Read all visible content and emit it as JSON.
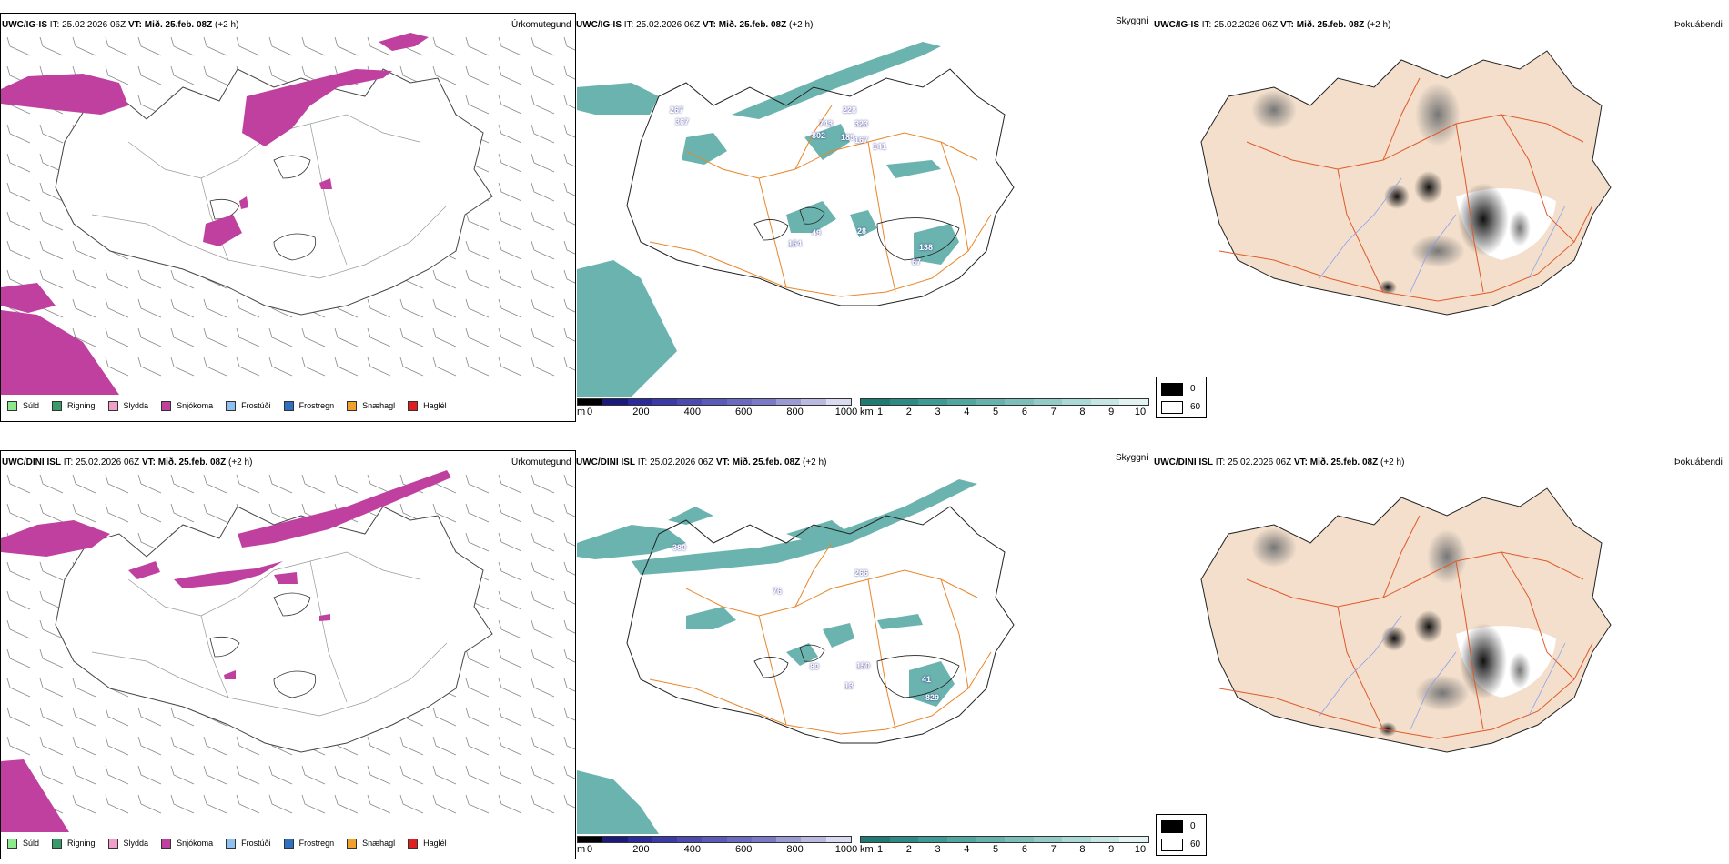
{
  "rows": [
    {
      "model": "UWC/IG-IS",
      "it": "IT: 25.02.2026 06Z",
      "vt_label": "VT:",
      "vt": "Mið. 25.feb. 08Z",
      "lead": "(+2 h)",
      "snow_labels": [
        "267",
        "367",
        "743",
        "228",
        "323",
        "802",
        "189",
        "167",
        "141",
        "28",
        "154",
        "49",
        "138",
        "67"
      ]
    },
    {
      "model": "UWC/DINI ISL",
      "it": "IT: 25.02.2026 06Z",
      "vt_label": "VT:",
      "vt": "Mið. 25.feb. 08Z",
      "lead": "(+2 h)",
      "snow_labels": [
        "380",
        "266",
        "76",
        "80",
        "150",
        "13",
        "41",
        "829"
      ]
    }
  ],
  "titles": {
    "precip_type": "Úrkomutegund",
    "visibility": "Skyggni",
    "fog": "Þokuábendi"
  },
  "precip_legend": [
    {
      "label": "Súld",
      "color": "#8ee88e"
    },
    {
      "label": "Rigning",
      "color": "#3a9a6a"
    },
    {
      "label": "Slydda",
      "color": "#f0a0c8"
    },
    {
      "label": "Snjókoma",
      "color": "#c040a0"
    },
    {
      "label": "Frostúði",
      "color": "#90c0f0"
    },
    {
      "label": "Frostregn",
      "color": "#3070c0"
    },
    {
      "label": "Snæhagl",
      "color": "#f0a030"
    },
    {
      "label": "Haglél",
      "color": "#e02020"
    }
  ],
  "cloud_base_bar": {
    "unit": "m",
    "ticks": [
      "0",
      "200",
      "400",
      "600",
      "800",
      "1000"
    ]
  },
  "visibility_bar": {
    "unit": "km",
    "ticks": [
      "1",
      "2",
      "3",
      "4",
      "5",
      "6",
      "7",
      "8",
      "9",
      "10"
    ]
  },
  "fog_legend": [
    {
      "label": "0",
      "color": "#000000"
    },
    {
      "label": "60",
      "color": "#ffffff"
    }
  ],
  "colors": {
    "snow": "#c040a0",
    "visibility": "#3a9a94",
    "roads": "#e8862a",
    "land_fog": "#f3dfcc",
    "rivers": "#8aa0ee"
  }
}
